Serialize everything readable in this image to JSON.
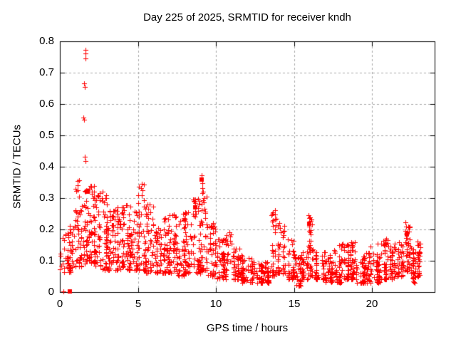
{
  "chart_data": {
    "type": "scatter",
    "title": "Day 225 of 2025, SRMTID for receiver kndh",
    "xlabel": "GPS time / hours",
    "ylabel": "SRMTID / TECUs",
    "xlim": [
      0,
      24
    ],
    "ylim": [
      0,
      0.8
    ],
    "xticks": [
      {
        "v": 0,
        "label": "0"
      },
      {
        "v": 5,
        "label": "5"
      },
      {
        "v": 10,
        "label": "10"
      },
      {
        "v": 15,
        "label": "15"
      },
      {
        "v": 20,
        "label": "20"
      }
    ],
    "yticks": [
      {
        "v": 0,
        "label": "0"
      },
      {
        "v": 0.1,
        "label": "0.1"
      },
      {
        "v": 0.2,
        "label": "0.2"
      },
      {
        "v": 0.3,
        "label": "0.3"
      },
      {
        "v": 0.4,
        "label": "0.4"
      },
      {
        "v": 0.5,
        "label": "0.5"
      },
      {
        "v": 0.6,
        "label": "0.6"
      },
      {
        "v": 0.7,
        "label": "0.7"
      },
      {
        "v": 0.8,
        "label": "0.8"
      }
    ],
    "grid": true,
    "legend": "none",
    "marker": {
      "shape": "plus",
      "size": 7
    },
    "colors": {
      "points": "#ff0000",
      "grid": "#a9a9a9",
      "border": "#000000",
      "background": "#ffffff",
      "text": "#000000"
    },
    "seed": 20250813,
    "outlier_points": [
      [
        0.23,
        0.002
      ],
      [
        0.1,
        0.085
      ],
      [
        0.18,
        0.092
      ],
      [
        1.15,
        0.355
      ],
      [
        1.16,
        0.34
      ],
      [
        1.14,
        0.325
      ],
      [
        1.62,
        0.772
      ],
      [
        1.63,
        0.762
      ],
      [
        1.62,
        0.745
      ],
      [
        1.57,
        0.665
      ],
      [
        1.58,
        0.654
      ],
      [
        1.52,
        0.557
      ],
      [
        1.53,
        0.55
      ],
      [
        1.6,
        0.431
      ],
      [
        1.63,
        0.418
      ],
      [
        2.0,
        0.335
      ],
      [
        2.05,
        0.32
      ],
      [
        2.14,
        0.3
      ],
      [
        2.42,
        0.31
      ],
      [
        2.72,
        0.32
      ],
      [
        2.7,
        0.3
      ],
      [
        3.2,
        0.26
      ],
      [
        3.7,
        0.27
      ],
      [
        4.3,
        0.278
      ],
      [
        4.5,
        0.272
      ],
      [
        4.9,
        0.255
      ],
      [
        5.25,
        0.345
      ],
      [
        5.27,
        0.325
      ],
      [
        5.24,
        0.31
      ],
      [
        5.6,
        0.28
      ],
      [
        6.3,
        0.205
      ],
      [
        6.65,
        0.235
      ],
      [
        7.2,
        0.245
      ],
      [
        7.9,
        0.25
      ],
      [
        7.92,
        0.23
      ],
      [
        8.2,
        0.255
      ],
      [
        8.67,
        0.295
      ],
      [
        8.68,
        0.285
      ],
      [
        8.66,
        0.26
      ],
      [
        8.69,
        0.24
      ],
      [
        9.1,
        0.373
      ],
      [
        9.11,
        0.347
      ],
      [
        9.12,
        0.332
      ],
      [
        9.13,
        0.316
      ],
      [
        9.2,
        0.3
      ],
      [
        9.22,
        0.287
      ],
      [
        9.24,
        0.266
      ],
      [
        9.6,
        0.21
      ],
      [
        10.2,
        0.168
      ],
      [
        10.88,
        0.19
      ],
      [
        10.9,
        0.178
      ],
      [
        10.92,
        0.163
      ],
      [
        13.76,
        0.262
      ],
      [
        13.78,
        0.247
      ],
      [
        13.8,
        0.232
      ],
      [
        13.82,
        0.214
      ],
      [
        13.79,
        0.2
      ],
      [
        14.05,
        0.22
      ],
      [
        14.1,
        0.205
      ],
      [
        14.15,
        0.19
      ],
      [
        15.93,
        0.245
      ],
      [
        15.95,
        0.225
      ],
      [
        15.97,
        0.208
      ],
      [
        16.0,
        0.19
      ],
      [
        16.05,
        0.185
      ],
      [
        17.9,
        0.15
      ],
      [
        18.1,
        0.155
      ],
      [
        18.65,
        0.16
      ],
      [
        19.9,
        0.145
      ],
      [
        20.35,
        0.155
      ],
      [
        20.9,
        0.17
      ],
      [
        21.0,
        0.165
      ],
      [
        21.45,
        0.155
      ],
      [
        21.7,
        0.16
      ],
      [
        22.15,
        0.222
      ],
      [
        22.17,
        0.21
      ],
      [
        22.14,
        0.196
      ],
      [
        22.19,
        0.186
      ],
      [
        22.9,
        0.162
      ],
      [
        22.95,
        0.15
      ],
      [
        23.0,
        0.13
      ],
      [
        23.05,
        0.115
      ]
    ],
    "square_points": [
      [
        0.62,
        0.002
      ],
      [
        1.78,
        0.32
      ],
      [
        8.67,
        0.27
      ],
      [
        9.1,
        0.36
      ],
      [
        15.95,
        0.218
      ],
      [
        22.2,
        0.185
      ]
    ],
    "density_bins": [
      [
        0.0,
        0.3,
        0.06,
        0.18,
        8
      ],
      [
        0.3,
        0.6,
        0.08,
        0.19,
        16
      ],
      [
        0.6,
        1.0,
        0.06,
        0.22,
        30
      ],
      [
        1.0,
        1.3,
        0.08,
        0.36,
        28
      ],
      [
        1.3,
        1.6,
        0.08,
        0.28,
        28
      ],
      [
        1.6,
        1.9,
        0.1,
        0.33,
        32
      ],
      [
        1.9,
        2.2,
        0.09,
        0.34,
        34
      ],
      [
        2.2,
        2.5,
        0.08,
        0.31,
        32
      ],
      [
        2.5,
        3.0,
        0.07,
        0.32,
        46
      ],
      [
        3.0,
        3.5,
        0.07,
        0.26,
        46
      ],
      [
        3.5,
        4.0,
        0.07,
        0.27,
        44
      ],
      [
        4.0,
        4.5,
        0.07,
        0.28,
        46
      ],
      [
        4.5,
        5.0,
        0.07,
        0.27,
        44
      ],
      [
        5.0,
        5.5,
        0.07,
        0.35,
        46
      ],
      [
        5.5,
        6.0,
        0.06,
        0.28,
        42
      ],
      [
        6.0,
        6.5,
        0.06,
        0.2,
        40
      ],
      [
        6.5,
        7.0,
        0.06,
        0.24,
        40
      ],
      [
        7.0,
        7.5,
        0.06,
        0.25,
        42
      ],
      [
        7.5,
        8.0,
        0.05,
        0.25,
        40
      ],
      [
        8.0,
        8.5,
        0.06,
        0.26,
        42
      ],
      [
        8.5,
        9.0,
        0.06,
        0.3,
        44
      ],
      [
        9.0,
        9.4,
        0.07,
        0.33,
        34
      ],
      [
        9.4,
        10.0,
        0.05,
        0.22,
        44
      ],
      [
        10.0,
        10.5,
        0.04,
        0.17,
        38
      ],
      [
        10.5,
        11.0,
        0.04,
        0.19,
        38
      ],
      [
        11.0,
        11.5,
        0.04,
        0.14,
        36
      ],
      [
        11.5,
        12.0,
        0.03,
        0.12,
        36
      ],
      [
        12.0,
        12.5,
        0.03,
        0.11,
        34
      ],
      [
        12.5,
        13.0,
        0.03,
        0.09,
        34
      ],
      [
        13.0,
        13.5,
        0.03,
        0.1,
        34
      ],
      [
        13.5,
        13.9,
        0.05,
        0.26,
        28
      ],
      [
        13.9,
        14.4,
        0.06,
        0.22,
        36
      ],
      [
        14.4,
        15.0,
        0.04,
        0.17,
        40
      ],
      [
        15.0,
        15.5,
        0.02,
        0.12,
        38
      ],
      [
        15.5,
        15.9,
        0.04,
        0.13,
        30
      ],
      [
        15.9,
        16.3,
        0.05,
        0.24,
        32
      ],
      [
        16.3,
        17.0,
        0.04,
        0.13,
        48
      ],
      [
        17.0,
        17.5,
        0.03,
        0.12,
        38
      ],
      [
        17.5,
        18.0,
        0.03,
        0.14,
        38
      ],
      [
        18.0,
        18.5,
        0.04,
        0.16,
        40
      ],
      [
        18.5,
        19.0,
        0.04,
        0.16,
        40
      ],
      [
        19.0,
        19.5,
        0.03,
        0.12,
        40
      ],
      [
        19.5,
        20.0,
        0.03,
        0.13,
        40
      ],
      [
        20.0,
        20.5,
        0.03,
        0.13,
        40
      ],
      [
        20.5,
        21.0,
        0.04,
        0.17,
        40
      ],
      [
        21.0,
        21.5,
        0.04,
        0.15,
        40
      ],
      [
        21.5,
        22.0,
        0.05,
        0.16,
        40
      ],
      [
        22.0,
        22.4,
        0.06,
        0.21,
        34
      ],
      [
        22.4,
        22.8,
        0.03,
        0.15,
        36
      ],
      [
        22.8,
        23.1,
        0.05,
        0.16,
        28
      ]
    ]
  }
}
